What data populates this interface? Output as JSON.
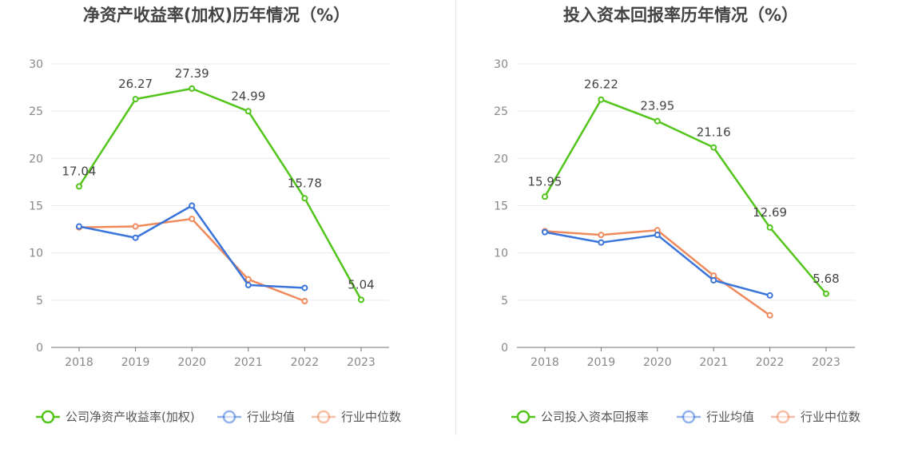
{
  "chart_data": [
    {
      "type": "line",
      "title": "净资产收益率(加权)历年情况（%）",
      "categories": [
        "2018",
        "2019",
        "2020",
        "2021",
        "2022",
        "2023"
      ],
      "ylim": [
        0,
        30
      ],
      "yticks": [
        0,
        5,
        10,
        15,
        20,
        25,
        30
      ],
      "grid": true,
      "legend_position": "bottom",
      "series": [
        {
          "name": "公司净资产收益率(加权)",
          "color": "#52c41a",
          "values": [
            17.04,
            26.27,
            27.39,
            24.99,
            15.78,
            5.04
          ],
          "labels": [
            "17.04",
            "26.27",
            "27.39",
            "24.99",
            "15.78",
            "5.04"
          ]
        },
        {
          "name": "行业均值",
          "color": "#3a75db",
          "values": [
            12.8,
            11.6,
            15.0,
            6.6,
            6.3,
            null
          ]
        },
        {
          "name": "行业中位数",
          "color": "#f08a5d",
          "values": [
            12.7,
            12.8,
            13.6,
            7.2,
            4.9,
            null
          ]
        }
      ]
    },
    {
      "type": "line",
      "title": "投入资本回报率历年情况（%）",
      "categories": [
        "2018",
        "2019",
        "2020",
        "2021",
        "2022",
        "2023"
      ],
      "ylim": [
        0,
        30
      ],
      "yticks": [
        0,
        5,
        10,
        15,
        20,
        25,
        30
      ],
      "grid": true,
      "legend_position": "bottom",
      "series": [
        {
          "name": "公司投入资本回报率",
          "color": "#52c41a",
          "values": [
            15.95,
            26.22,
            23.95,
            21.16,
            12.69,
            5.68
          ],
          "labels": [
            "15.95",
            "26.22",
            "23.95",
            "21.16",
            "12.69",
            "5.68"
          ]
        },
        {
          "name": "行业均值",
          "color": "#3a75db",
          "values": [
            12.2,
            11.1,
            11.9,
            7.1,
            5.5,
            null
          ]
        },
        {
          "name": "行业中位数",
          "color": "#f08a5d",
          "values": [
            12.3,
            11.9,
            12.4,
            7.6,
            3.4,
            null
          ]
        }
      ]
    }
  ]
}
